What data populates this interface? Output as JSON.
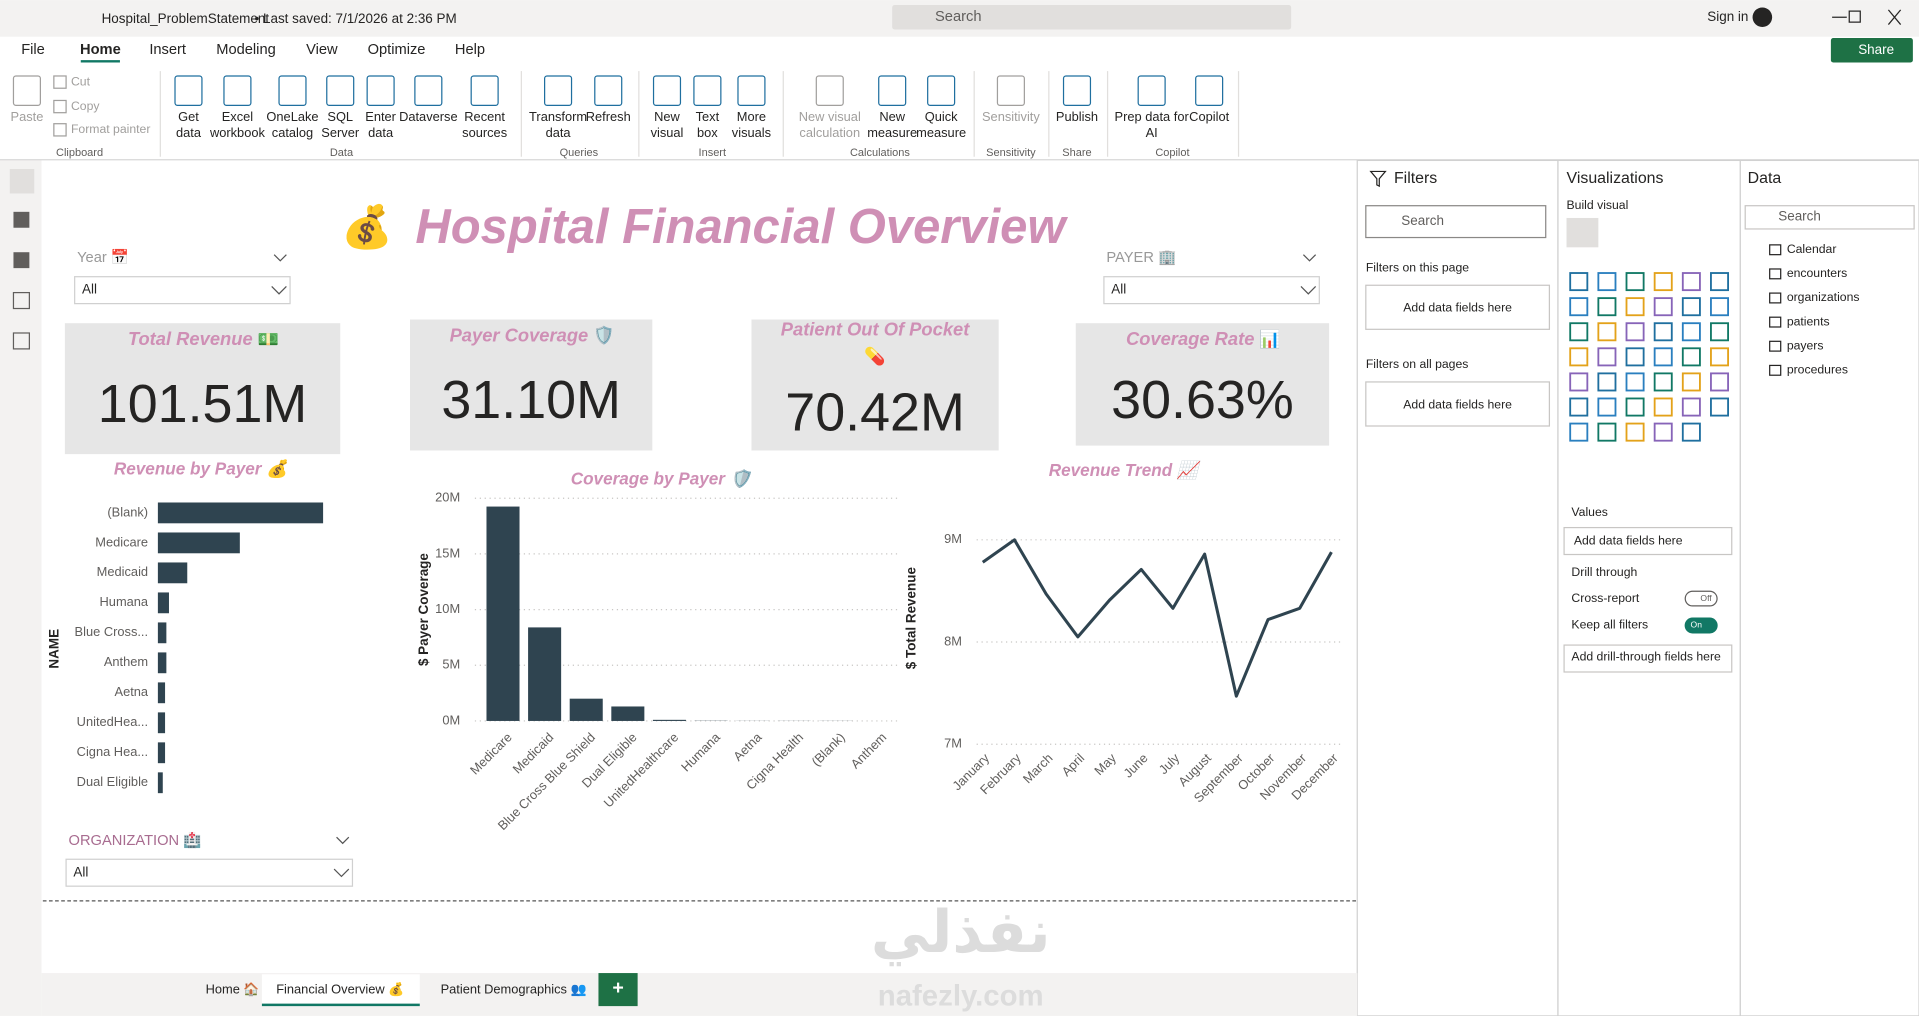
{
  "titlebar": {
    "file_name": "Hospital_ProblemStatement",
    "save_state": "• Last saved: 7/1/2026 at 2:36 PM",
    "search": "Search",
    "sign_in": "Sign in",
    "share": "Share"
  },
  "menu": [
    "File",
    "Home",
    "Insert",
    "Modeling",
    "View",
    "Optimize",
    "Help"
  ],
  "ribbon": {
    "groups": [
      {
        "label": "Clipboard",
        "items": [
          [
            "Paste"
          ],
          [
            "Cut"
          ],
          [
            "Copy"
          ],
          [
            "Format painter"
          ]
        ]
      },
      {
        "label": "Data",
        "items": [
          [
            "Get",
            "data"
          ],
          [
            "Excel",
            "workbook"
          ],
          [
            "OneLake",
            "catalog"
          ],
          [
            "SQL",
            "Server"
          ],
          [
            "Enter",
            "data"
          ],
          [
            "Dataverse"
          ],
          [
            "Recent",
            "sources"
          ]
        ]
      },
      {
        "label": "Queries",
        "items": [
          [
            "Transform",
            "data"
          ],
          [
            "Refresh"
          ]
        ]
      },
      {
        "label": "Insert",
        "items": [
          [
            "New",
            "visual"
          ],
          [
            "Text",
            "box"
          ],
          [
            "More",
            "visuals"
          ]
        ]
      },
      {
        "label": "Calculations",
        "items": [
          [
            "New visual",
            "calculation"
          ],
          [
            "New",
            "measure"
          ],
          [
            "Quick",
            "measure"
          ]
        ]
      },
      {
        "label": "Sensitivity",
        "items": [
          [
            "Sensitivity"
          ]
        ]
      },
      {
        "label": "Share",
        "items": [
          [
            "Publish"
          ]
        ]
      },
      {
        "label": "Copilot",
        "items": [
          [
            "Prep data for",
            "AI"
          ],
          [
            "Copilot"
          ]
        ]
      }
    ]
  },
  "report": {
    "title_icon": "💰",
    "title": "Hospital Financial Overview",
    "slicers": [
      {
        "label": "Year 📅",
        "selection": "All"
      },
      {
        "label": "PAYER 🏢",
        "selection": "All"
      },
      {
        "label": "ORGANIZATION 🏥",
        "selection": "All"
      }
    ],
    "cards": [
      {
        "title": "Total Revenue",
        "icon": "💵",
        "value": "101.51M"
      },
      {
        "title": "Payer Coverage",
        "icon": "🛡️",
        "value": "31.10M"
      },
      {
        "title": "Patient Out Of Pocket",
        "icon": "💊",
        "value": "70.42M"
      },
      {
        "title": "Coverage Rate",
        "icon": "📊",
        "value": "30.63%"
      }
    ]
  },
  "chart_data": [
    {
      "type": "hbar",
      "title": "Revenue by Payer 💰",
      "y_label": "NAME",
      "categories": [
        "(Blank)",
        "Medicare",
        "Medicaid",
        "Humana",
        "Blue Cross...",
        "Anthem",
        "Aetna",
        "UnitedHea...",
        "Cigna Hea...",
        "Dual Eligible"
      ],
      "values": [
        50.6,
        25.1,
        9.0,
        3.4,
        2.6,
        2.6,
        2.2,
        2.2,
        2.2,
        1.5
      ],
      "color": "#2f4450"
    },
    {
      "type": "bar",
      "title": "Coverage by Payer 🛡️",
      "y_label": "$ Payer Coverage",
      "categories": [
        "Medicare",
        "Medicaid",
        "Blue Cross Blue Shield",
        "Dual Eligible",
        "UnitedHealthcare",
        "Humana",
        "Aetna",
        "Cigna Health",
        "(Blank)",
        "Anthem"
      ],
      "values": [
        19.25,
        8.4,
        2.0,
        1.3,
        0.1,
        0.02,
        0.01,
        0.01,
        0.01,
        0
      ],
      "ylim": [
        0,
        20
      ],
      "yticks": [
        {
          "value": 0,
          "label": "0M"
        },
        {
          "value": 5,
          "label": "5M"
        },
        {
          "value": 10,
          "label": "10M"
        },
        {
          "value": 15,
          "label": "15M"
        },
        {
          "value": 20,
          "label": "20M"
        }
      ],
      "grid": true,
      "color": "#2f4450"
    },
    {
      "type": "line",
      "title": "Revenue Trend 📈",
      "y_label": "$ Total Revenue",
      "categories": [
        "January",
        "February",
        "March",
        "April",
        "May",
        "June",
        "July",
        "August",
        "September",
        "October",
        "November",
        "December"
      ],
      "values": [
        8.78,
        9.0,
        8.47,
        8.05,
        8.41,
        8.71,
        8.33,
        8.86,
        7.47,
        8.22,
        8.33,
        8.88
      ],
      "ylim": [
        7,
        9.4
      ],
      "yticks": [
        {
          "value": 7,
          "label": "7M"
        },
        {
          "value": 8,
          "label": "8M"
        },
        {
          "value": 9,
          "label": "9M"
        }
      ],
      "grid": true,
      "color": "#2f4450"
    }
  ],
  "filters_pane": {
    "title": "Filters",
    "search": "Search",
    "page_section": "Filters on this page",
    "page_drop": "Add data fields here",
    "all_section": "Filters on all pages",
    "all_drop": "Add data fields here"
  },
  "visualizations_pane": {
    "title": "Visualizations",
    "build": "Build visual",
    "values": "Values",
    "values_drop": "Add data fields here",
    "drill": "Drill through",
    "cross_report": "Cross-report",
    "cross_state": "Off",
    "keep_filters": "Keep all filters",
    "keep_state": "On",
    "drill_drop": "Add drill-through fields here"
  },
  "data_pane": {
    "title": "Data",
    "search": "Search",
    "tables": [
      "Calendar",
      "encounters",
      "organizations",
      "patients",
      "payers",
      "procedures"
    ]
  },
  "page_tabs": [
    "Home 🏠",
    "Financial Overview 💰",
    "Patient Demographics 👥"
  ],
  "watermark": {
    "arabic": "نفذلي",
    "latin": "nafezly.com"
  }
}
